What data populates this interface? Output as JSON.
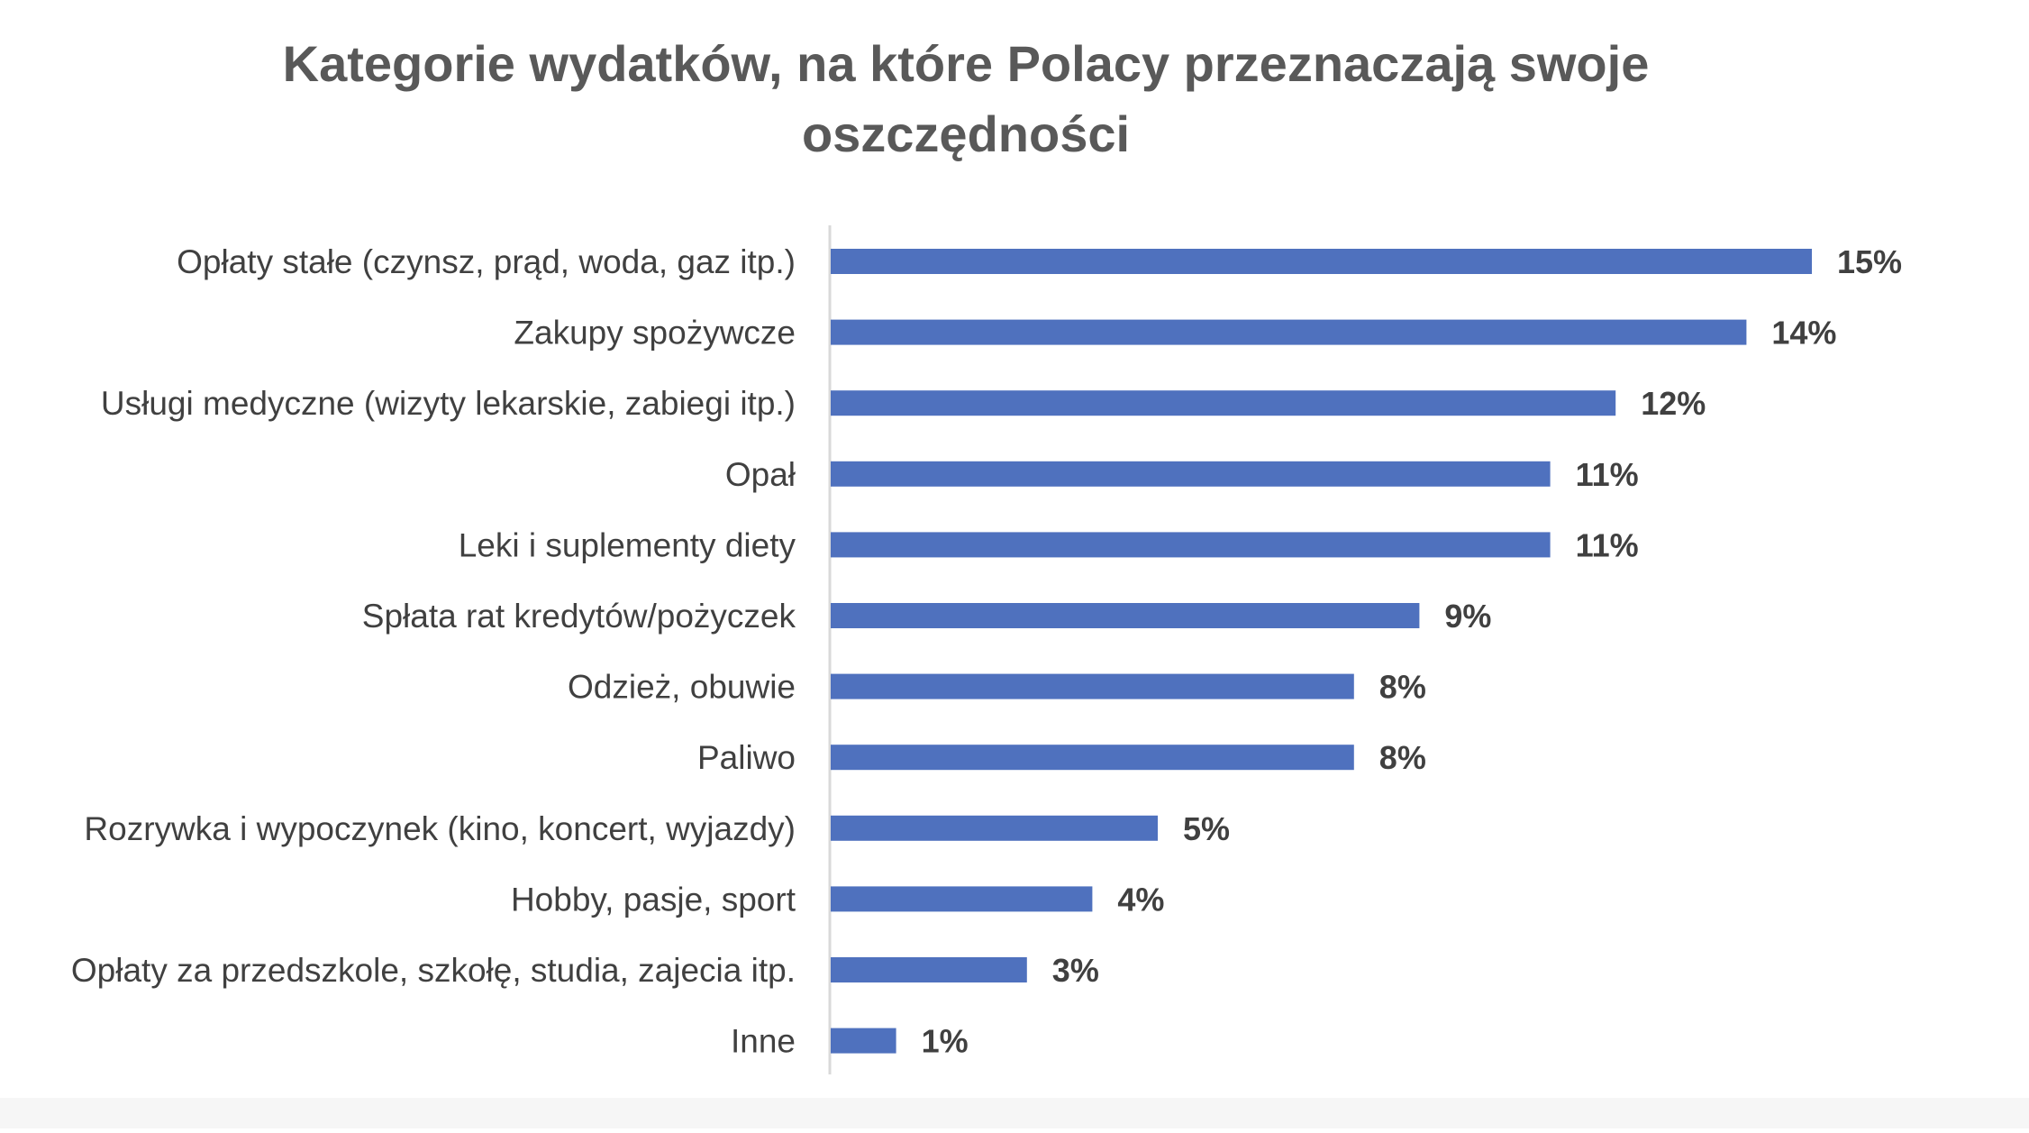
{
  "chart_data": {
    "type": "bar",
    "orientation": "horizontal",
    "title": "Kategorie wydatków, na które Polacy przeznaczają swoje oszczędności",
    "title_lines": [
      "Kategorie wydatków, na które Polacy przeznaczają swoje",
      "oszczędności"
    ],
    "categories": [
      "Opłaty stałe (czynsz, prąd, woda, gaz itp.)",
      "Zakupy spożywcze",
      "Usługi medyczne (wizyty lekarskie, zabiegi itp.)",
      "Opał",
      "Leki i suplementy diety",
      "Spłata rat kredytów/pożyczek",
      "Odzież, obuwie",
      "Paliwo",
      "Rozrywka i wypoczynek (kino, koncert, wyjazdy)",
      "Hobby, pasje, sport",
      "Opłaty za przedszkole, szkołę, studia, zajecia itp.",
      "Inne"
    ],
    "values": [
      15,
      14,
      12,
      11,
      11,
      9,
      8,
      8,
      5,
      4,
      3,
      1
    ],
    "value_labels": [
      "15%",
      "14%",
      "12%",
      "11%",
      "11%",
      "9%",
      "8%",
      "8%",
      "5%",
      "4%",
      "3%",
      "1%"
    ],
    "unit": "%",
    "xlim": [
      0,
      15
    ],
    "grid": false,
    "legend": "none",
    "colors": {
      "bar": "#4f71be",
      "text": "#404040",
      "title": "#595959",
      "axis": "#d9d9d9"
    }
  }
}
